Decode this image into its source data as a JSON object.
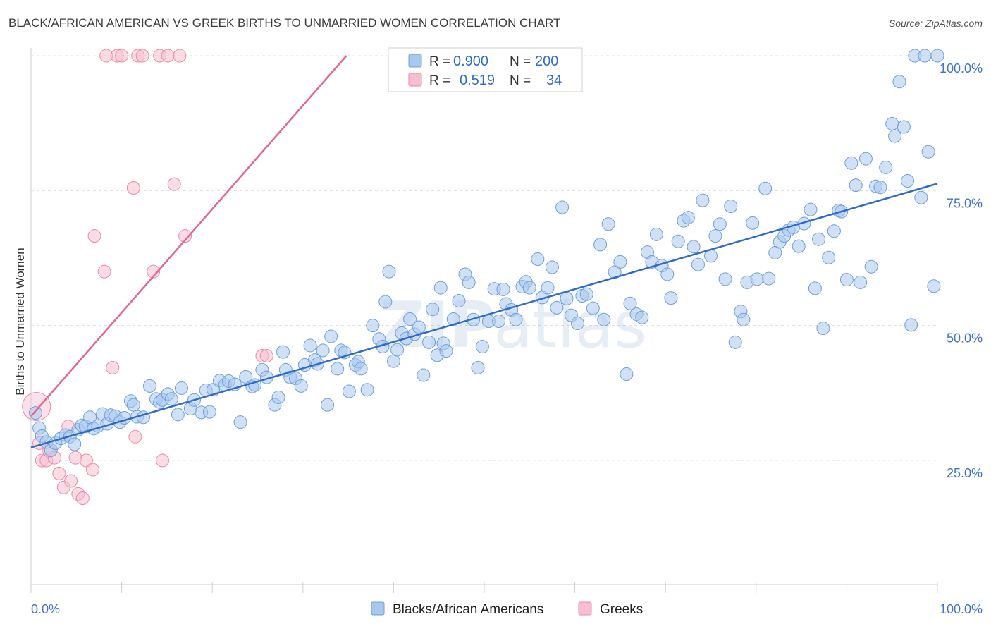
{
  "title": "BLACK/AFRICAN AMERICAN VS GREEK BIRTHS TO UNMARRIED WOMEN CORRELATION CHART",
  "source": "Source: ZipAtlas.com",
  "watermark": {
    "part1": "ZIP",
    "part2": "atlas"
  },
  "colors": {
    "blue_fill": "#a9c8ee",
    "blue_stroke": "#6f9fd8",
    "blue_line": "#2f6cc8",
    "pink_fill": "#f6bfd0",
    "pink_stroke": "#e98aa8",
    "pink_line": "#e2668f",
    "tick_text": "#3f74c9",
    "grid": "#dddddd"
  },
  "legend_box": {
    "rows": [
      {
        "r_label": "R =",
        "r_value": "0.900",
        "n_label": "N =",
        "n_value": "200",
        "series": "blue"
      },
      {
        "r_label": "R =",
        "r_value": "0.519",
        "n_label": "N =",
        "n_value": "34",
        "series": "pink"
      }
    ]
  },
  "bottom_legend": [
    {
      "label": "Blacks/African Americans",
      "series": "blue"
    },
    {
      "label": "Greeks",
      "series": "pink"
    }
  ],
  "chart_data": {
    "type": "scatter",
    "title": "BLACK/AFRICAN AMERICAN VS GREEK BIRTHS TO UNMARRIED WOMEN CORRELATION CHART",
    "xlabel": "",
    "ylabel": "Births to Unmarried Women",
    "xlim": [
      0,
      100
    ],
    "ylim": [
      2,
      100
    ],
    "x_tick_labels": [
      "0.0%",
      "100.0%"
    ],
    "y_ticks": [
      25,
      50,
      75,
      100
    ],
    "y_tick_labels": [
      "25.0%",
      "50.0%",
      "75.0%",
      "100.0%"
    ],
    "grid": true,
    "legend_position": "top-center",
    "series": [
      {
        "name": "Blacks/African Americans",
        "color": "blue",
        "trendline": {
          "x": [
            0,
            100
          ],
          "y": [
            27.4,
            76.3
          ]
        },
        "points": [
          [
            0.5,
            33.8
          ],
          [
            0.9,
            31.0
          ],
          [
            1.2,
            29.5
          ],
          [
            1.7,
            28.4
          ],
          [
            2.2,
            26.9
          ],
          [
            2.7,
            28.2
          ],
          [
            3.3,
            29.1
          ],
          [
            3.8,
            29.7
          ],
          [
            4.3,
            29.4
          ],
          [
            4.8,
            28.0
          ],
          [
            5.2,
            30.7
          ],
          [
            5.6,
            31.5
          ],
          [
            6.0,
            31.3
          ],
          [
            6.5,
            33.0
          ],
          [
            6.9,
            30.9
          ],
          [
            7.4,
            31.4
          ],
          [
            7.9,
            33.6
          ],
          [
            8.4,
            31.8
          ],
          [
            8.8,
            33.4
          ],
          [
            9.3,
            33.2
          ],
          [
            9.8,
            32.1
          ],
          [
            10.3,
            32.9
          ],
          [
            11.0,
            36.0
          ],
          [
            11.3,
            35.3
          ],
          [
            11.7,
            33.1
          ],
          [
            12.4,
            33.0
          ],
          [
            13.1,
            38.8
          ],
          [
            13.8,
            36.4
          ],
          [
            14.2,
            35.8
          ],
          [
            14.5,
            36.2
          ],
          [
            15.1,
            37.3
          ],
          [
            15.5,
            36.4
          ],
          [
            16.2,
            33.5
          ],
          [
            16.6,
            38.4
          ],
          [
            17.6,
            34.6
          ],
          [
            18.0,
            36.2
          ],
          [
            18.8,
            33.9
          ],
          [
            19.3,
            38.0
          ],
          [
            19.7,
            34.0
          ],
          [
            20.1,
            38.1
          ],
          [
            20.8,
            39.8
          ],
          [
            21.4,
            39.0
          ],
          [
            21.8,
            39.7
          ],
          [
            22.5,
            39.1
          ],
          [
            23.1,
            32.1
          ],
          [
            23.7,
            40.5
          ],
          [
            24.4,
            38.7
          ],
          [
            24.7,
            39.0
          ],
          [
            25.5,
            41.8
          ],
          [
            26.0,
            40.4
          ],
          [
            26.9,
            35.3
          ],
          [
            27.3,
            36.7
          ],
          [
            27.8,
            45.1
          ],
          [
            28.1,
            41.8
          ],
          [
            28.6,
            40.4
          ],
          [
            29.2,
            40.2
          ],
          [
            29.8,
            38.8
          ],
          [
            30.2,
            42.7
          ],
          [
            30.8,
            46.3
          ],
          [
            31.3,
            43.6
          ],
          [
            31.6,
            42.9
          ],
          [
            32.2,
            45.4
          ],
          [
            32.7,
            35.3
          ],
          [
            33.1,
            48.0
          ],
          [
            33.8,
            42.0
          ],
          [
            34.2,
            45.4
          ],
          [
            34.6,
            45.0
          ],
          [
            35.1,
            37.8
          ],
          [
            35.8,
            42.7
          ],
          [
            36.1,
            43.3
          ],
          [
            36.4,
            42.0
          ],
          [
            37.1,
            38.1
          ],
          [
            37.7,
            50.0
          ],
          [
            38.4,
            47.5
          ],
          [
            38.8,
            46.1
          ],
          [
            39.1,
            54.4
          ],
          [
            39.5,
            60.0
          ],
          [
            40.0,
            43.4
          ],
          [
            40.4,
            45.5
          ],
          [
            40.9,
            48.6
          ],
          [
            41.4,
            47.6
          ],
          [
            41.8,
            51.2
          ],
          [
            42.3,
            48.4
          ],
          [
            42.8,
            49.7
          ],
          [
            43.3,
            40.8
          ],
          [
            43.9,
            46.9
          ],
          [
            44.3,
            53.0
          ],
          [
            44.8,
            44.5
          ],
          [
            45.2,
            57.0
          ],
          [
            45.5,
            46.7
          ],
          [
            45.8,
            45.3
          ],
          [
            46.6,
            51.2
          ],
          [
            47.2,
            54.6
          ],
          [
            47.9,
            59.5
          ],
          [
            48.3,
            58.0
          ],
          [
            48.8,
            51.1
          ],
          [
            49.3,
            42.2
          ],
          [
            49.8,
            46.1
          ],
          [
            50.5,
            50.8
          ],
          [
            51.1,
            56.8
          ],
          [
            51.6,
            50.8
          ],
          [
            52.1,
            56.7
          ],
          [
            52.4,
            54.0
          ],
          [
            53.0,
            52.9
          ],
          [
            53.5,
            51.1
          ],
          [
            54.2,
            57.2
          ],
          [
            54.6,
            58.1
          ],
          [
            55.0,
            57.0
          ],
          [
            55.9,
            62.3
          ],
          [
            56.4,
            55.2
          ],
          [
            57.0,
            57.0
          ],
          [
            57.5,
            60.8
          ],
          [
            58.0,
            53.3
          ],
          [
            58.6,
            71.9
          ],
          [
            59.1,
            55.0
          ],
          [
            59.6,
            51.9
          ],
          [
            60.3,
            50.4
          ],
          [
            60.8,
            55.5
          ],
          [
            61.3,
            55.8
          ],
          [
            62.0,
            53.2
          ],
          [
            62.8,
            65.0
          ],
          [
            63.2,
            51.1
          ],
          [
            63.7,
            68.8
          ],
          [
            64.4,
            59.9
          ],
          [
            65.0,
            61.8
          ],
          [
            65.7,
            41.0
          ],
          [
            66.1,
            54.1
          ],
          [
            66.8,
            52.1
          ],
          [
            67.4,
            51.5
          ],
          [
            68.0,
            63.6
          ],
          [
            68.5,
            61.8
          ],
          [
            69.0,
            66.9
          ],
          [
            69.6,
            61.1
          ],
          [
            70.2,
            59.5
          ],
          [
            70.6,
            55.1
          ],
          [
            71.4,
            65.6
          ],
          [
            72.0,
            69.4
          ],
          [
            72.5,
            70.0
          ],
          [
            73.1,
            64.6
          ],
          [
            73.6,
            61.3
          ],
          [
            74.1,
            73.2
          ],
          [
            75.0,
            62.9
          ],
          [
            75.5,
            66.6
          ],
          [
            76.0,
            68.8
          ],
          [
            76.6,
            58.6
          ],
          [
            77.2,
            72.1
          ],
          [
            77.7,
            46.9
          ],
          [
            78.3,
            52.6
          ],
          [
            78.6,
            51.1
          ],
          [
            79.0,
            58.0
          ],
          [
            79.6,
            69.0
          ],
          [
            80.1,
            58.6
          ],
          [
            81.0,
            75.4
          ],
          [
            81.4,
            58.7
          ],
          [
            82.1,
            63.5
          ],
          [
            82.6,
            65.5
          ],
          [
            83.1,
            66.6
          ],
          [
            83.6,
            67.7
          ],
          [
            84.1,
            68.2
          ],
          [
            84.7,
            64.7
          ],
          [
            85.3,
            68.9
          ],
          [
            86.0,
            71.5
          ],
          [
            86.5,
            56.9
          ],
          [
            86.9,
            66.0
          ],
          [
            87.4,
            49.5
          ],
          [
            88.0,
            62.6
          ],
          [
            88.6,
            67.5
          ],
          [
            89.1,
            71.3
          ],
          [
            89.4,
            71.1
          ],
          [
            90.0,
            58.5
          ],
          [
            90.5,
            80.1
          ],
          [
            91.0,
            76.0
          ],
          [
            91.5,
            58.0
          ],
          [
            92.1,
            80.9
          ],
          [
            92.7,
            60.9
          ],
          [
            93.2,
            75.8
          ],
          [
            93.7,
            75.6
          ],
          [
            94.3,
            79.3
          ],
          [
            95.0,
            87.4
          ],
          [
            95.3,
            85.1
          ],
          [
            95.8,
            95.2
          ],
          [
            96.3,
            86.8
          ],
          [
            96.7,
            76.8
          ],
          [
            97.1,
            50.1
          ],
          [
            97.5,
            100.0
          ],
          [
            98.2,
            73.7
          ],
          [
            98.6,
            100.0
          ],
          [
            99.0,
            82.2
          ],
          [
            99.6,
            57.3
          ],
          [
            100.0,
            100.0
          ]
        ]
      },
      {
        "name": "Greeks",
        "color": "pink",
        "trendline": {
          "x": [
            0,
            34.8
          ],
          "y": [
            33.2,
            100
          ]
        },
        "points": [
          [
            0.6,
            35.0
          ],
          [
            0.9,
            28.2
          ],
          [
            1.2,
            25.0
          ],
          [
            1.7,
            25.0
          ],
          [
            2.0,
            26.8
          ],
          [
            2.6,
            25.5
          ],
          [
            3.1,
            22.6
          ],
          [
            3.6,
            20.0
          ],
          [
            4.1,
            31.3
          ],
          [
            4.4,
            21.2
          ],
          [
            4.9,
            25.5
          ],
          [
            5.2,
            18.8
          ],
          [
            5.7,
            18.0
          ],
          [
            6.1,
            25.0
          ],
          [
            6.8,
            23.3
          ],
          [
            7.0,
            66.6
          ],
          [
            8.1,
            60.0
          ],
          [
            8.3,
            100.0
          ],
          [
            9.0,
            42.2
          ],
          [
            9.5,
            100.0
          ],
          [
            10.0,
            100.0
          ],
          [
            11.3,
            75.5
          ],
          [
            11.5,
            29.4
          ],
          [
            11.8,
            100.0
          ],
          [
            12.3,
            100.0
          ],
          [
            13.5,
            60.0
          ],
          [
            14.2,
            100.0
          ],
          [
            14.5,
            25.0
          ],
          [
            15.1,
            100.0
          ],
          [
            15.8,
            76.2
          ],
          [
            16.4,
            100.0
          ],
          [
            17.0,
            66.6
          ],
          [
            25.5,
            44.4
          ],
          [
            26.0,
            44.4
          ]
        ]
      }
    ]
  }
}
